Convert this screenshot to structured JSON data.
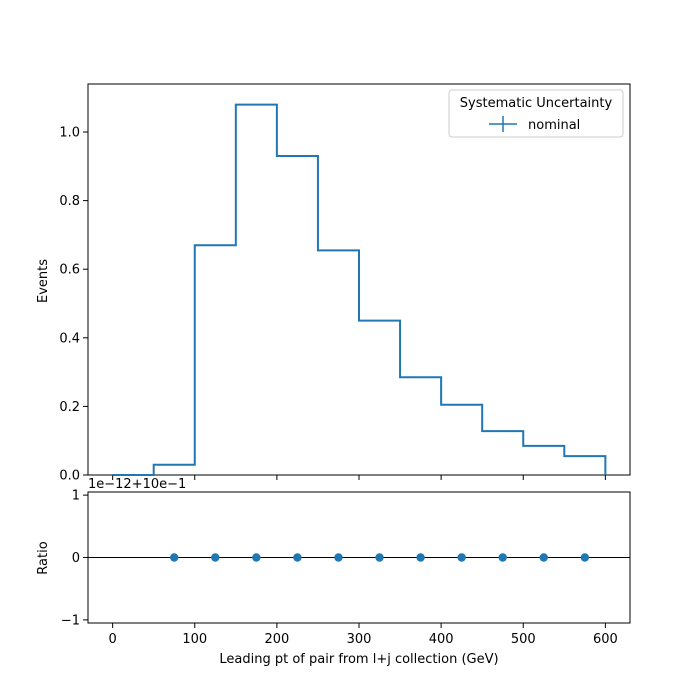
{
  "chart_data": [
    {
      "type": "step",
      "title": "",
      "xlabel": "",
      "ylabel": "Events",
      "xlim": [
        -30,
        630
      ],
      "ylim": [
        0,
        1.14
      ],
      "yticks": [
        0.0,
        0.2,
        0.4,
        0.6,
        0.8,
        1.0
      ],
      "ytick_labels": [
        "0.0",
        "0.2",
        "0.4",
        "0.6",
        "0.8",
        "1.0"
      ],
      "bin_edges": [
        0,
        50,
        100,
        150,
        200,
        250,
        300,
        350,
        400,
        450,
        500,
        550,
        600
      ],
      "series": [
        {
          "name": "nominal",
          "color": "#1f77b4",
          "values": [
            0.0,
            0.03,
            0.67,
            1.08,
            0.93,
            0.655,
            0.45,
            0.285,
            0.205,
            0.128,
            0.085,
            0.055
          ]
        }
      ],
      "legend": {
        "title": "Systematic Uncertainty",
        "placement": "top-right",
        "entries": [
          "nominal"
        ]
      },
      "grid": false
    },
    {
      "type": "scatter",
      "xlabel": "Leading pt of pair from l+j collection (GeV)",
      "ylabel": "Ratio",
      "offset_text": "1e−12+10e−1",
      "xlim": [
        -30,
        630
      ],
      "ylim": [
        -1.05,
        1.05
      ],
      "xticks": [
        0,
        100,
        200,
        300,
        400,
        500,
        600
      ],
      "xtick_labels": [
        "0",
        "100",
        "200",
        "300",
        "400",
        "500",
        "600"
      ],
      "yticks": [
        -1,
        0,
        1
      ],
      "ytick_labels": [
        "−1",
        "0",
        "1"
      ],
      "reference_line": 0,
      "series": [
        {
          "name": "nominal",
          "color": "#1f77b4",
          "x": [
            75,
            125,
            175,
            225,
            275,
            325,
            375,
            425,
            475,
            525,
            575
          ],
          "y": [
            0,
            0,
            0,
            0,
            0,
            0,
            0,
            0,
            0,
            0,
            0
          ]
        }
      ],
      "grid": false
    }
  ]
}
